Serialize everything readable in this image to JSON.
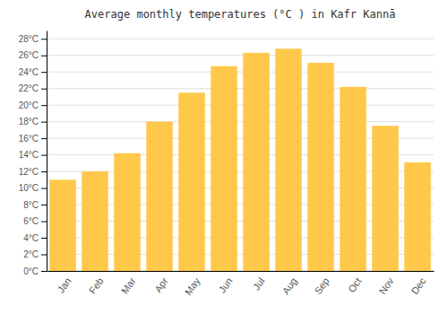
{
  "chart_data": {
    "type": "bar",
    "title": "Average monthly temperatures (°C ) in Kafr Kannā",
    "categories": [
      "Jan",
      "Feb",
      "Mar",
      "Apr",
      "May",
      "Jun",
      "Jul",
      "Aug",
      "Sep",
      "Oct",
      "Nov",
      "Dec"
    ],
    "values": [
      11,
      12,
      14.2,
      18,
      21.5,
      24.7,
      26.3,
      26.8,
      25.1,
      22.2,
      17.5,
      13.1
    ],
    "color": "#FFC84A",
    "ylim": [
      0,
      29
    ],
    "yticks": [
      {
        "value": 0,
        "label": "0°C"
      },
      {
        "value": 2,
        "label": "2°C"
      },
      {
        "value": 4,
        "label": "4°C"
      },
      {
        "value": 6,
        "label": "6°C"
      },
      {
        "value": 8,
        "label": "8°C"
      },
      {
        "value": 10,
        "label": "10°C"
      },
      {
        "value": 12,
        "label": "12°C"
      },
      {
        "value": 14,
        "label": "14°C"
      },
      {
        "value": 16,
        "label": "16°C"
      },
      {
        "value": 18,
        "label": "18°C"
      },
      {
        "value": 20,
        "label": "20°C"
      },
      {
        "value": 22,
        "label": "22°C"
      },
      {
        "value": 24,
        "label": "24°C"
      },
      {
        "value": 26,
        "label": "26°C"
      },
      {
        "value": 28,
        "label": "28°C"
      }
    ],
    "grid": true
  }
}
